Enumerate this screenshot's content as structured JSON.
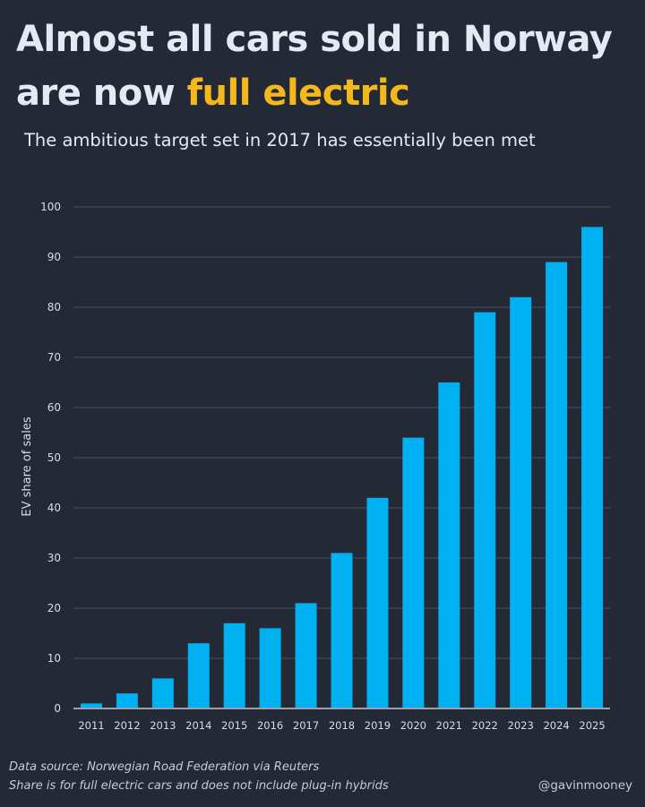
{
  "header": {
    "title_line1": "Almost all cars sold in Norway",
    "title_line2_prefix": "are now ",
    "title_line2_highlight": "full electric",
    "subtitle": "The ambitious target set in 2017 has essentially been met"
  },
  "footer": {
    "source": "Data source: Norwegian Road Federation via Reuters",
    "note": "Share is for full electric cars and does not include plug-in hybrids",
    "handle": "@gavinmooney"
  },
  "colors": {
    "background": "#232935",
    "bar": "#00b0f0",
    "highlight": "#f4b81c",
    "gridline": "#363d4b",
    "axis": "#9aa1ab"
  },
  "chart_data": {
    "type": "bar",
    "title": "Almost all cars sold in Norway are now full electric",
    "subtitle": "The ambitious target set in 2017 has essentially been met",
    "xlabel": "",
    "ylabel": "EV share of sales",
    "categories": [
      "2011",
      "2012",
      "2013",
      "2014",
      "2015",
      "2016",
      "2017",
      "2018",
      "2019",
      "2020",
      "2021",
      "2022",
      "2023",
      "2024",
      "2025"
    ],
    "values": [
      1,
      3,
      6,
      13,
      17,
      16,
      21,
      31,
      42,
      54,
      65,
      79,
      82,
      89,
      96
    ],
    "ylim": [
      0,
      100
    ],
    "yticks": [
      0,
      10,
      20,
      30,
      40,
      50,
      60,
      70,
      80,
      90,
      100
    ],
    "grid": true,
    "legend": "none"
  }
}
